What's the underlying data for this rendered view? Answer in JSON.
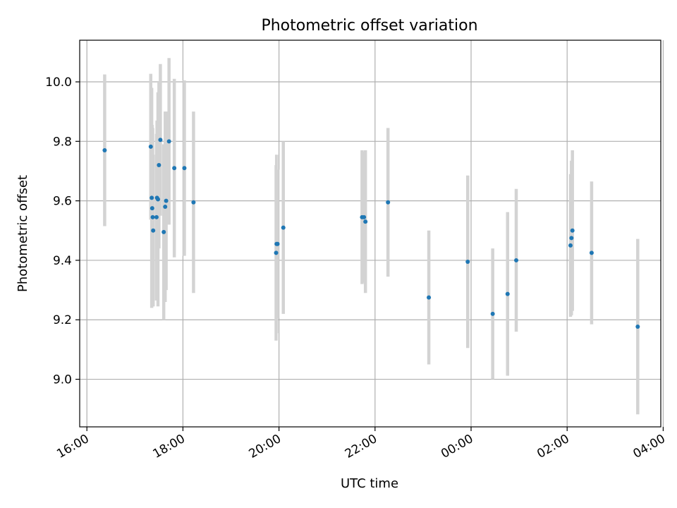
{
  "chart_data": {
    "type": "scatter",
    "title": "Photometric offset variation",
    "xlabel": "UTC time",
    "ylabel": "Photometric offset",
    "x_unit": "hours since 16:00 UTC",
    "xlim": [
      -0.15,
      11.95
    ],
    "ylim": [
      8.84,
      10.14
    ],
    "x_ticks": [
      {
        "value": 0,
        "label": "16:00"
      },
      {
        "value": 2,
        "label": "18:00"
      },
      {
        "value": 4,
        "label": "20:00"
      },
      {
        "value": 6,
        "label": "22:00"
      },
      {
        "value": 8,
        "label": "00:00"
      },
      {
        "value": 10,
        "label": "02:00"
      },
      {
        "value": 12,
        "label": "04:00"
      }
    ],
    "y_ticks": [
      {
        "value": 9.0,
        "label": "9.0"
      },
      {
        "value": 9.2,
        "label": "9.2"
      },
      {
        "value": 9.4,
        "label": "9.4"
      },
      {
        "value": 9.6,
        "label": "9.6"
      },
      {
        "value": 9.8,
        "label": "9.8"
      },
      {
        "value": 10.0,
        "label": "10.0"
      }
    ],
    "grid": true,
    "marker_color": "#1f77b4",
    "errorbar_color": "#d3d3d3",
    "points": [
      {
        "x": 0.37,
        "y": 9.77,
        "err": 0.255
      },
      {
        "x": 1.33,
        "y": 9.782,
        "err": 0.245
      },
      {
        "x": 1.35,
        "y": 9.61,
        "err": 0.37
      },
      {
        "x": 1.36,
        "y": 9.575,
        "err": 0.28
      },
      {
        "x": 1.37,
        "y": 9.545,
        "err": 0.3
      },
      {
        "x": 1.38,
        "y": 9.5,
        "err": 0.255
      },
      {
        "x": 1.45,
        "y": 9.545,
        "err": 0.28
      },
      {
        "x": 1.46,
        "y": 9.61,
        "err": 0.26
      },
      {
        "x": 1.48,
        "y": 9.605,
        "err": 0.36
      },
      {
        "x": 1.5,
        "y": 9.72,
        "err": 0.28
      },
      {
        "x": 1.53,
        "y": 9.805,
        "err": 0.255
      },
      {
        "x": 1.6,
        "y": 9.495,
        "err": 0.295
      },
      {
        "x": 1.63,
        "y": 9.58,
        "err": 0.32
      },
      {
        "x": 1.65,
        "y": 9.6,
        "err": 0.3
      },
      {
        "x": 1.71,
        "y": 9.8,
        "err": 0.28
      },
      {
        "x": 1.82,
        "y": 9.71,
        "err": 0.3
      },
      {
        "x": 2.03,
        "y": 9.71,
        "err": 0.295
      },
      {
        "x": 2.22,
        "y": 9.595,
        "err": 0.305
      },
      {
        "x": 3.94,
        "y": 9.425,
        "err": 0.295
      },
      {
        "x": 3.95,
        "y": 9.455,
        "err": 0.3
      },
      {
        "x": 3.97,
        "y": 9.455,
        "err": 0.25
      },
      {
        "x": 4.09,
        "y": 9.51,
        "err": 0.29
      },
      {
        "x": 5.73,
        "y": 9.545,
        "err": 0.225
      },
      {
        "x": 5.77,
        "y": 9.545,
        "err": 0.22
      },
      {
        "x": 5.8,
        "y": 9.53,
        "err": 0.24
      },
      {
        "x": 6.27,
        "y": 9.595,
        "err": 0.25
      },
      {
        "x": 7.12,
        "y": 9.275,
        "err": 0.225
      },
      {
        "x": 7.93,
        "y": 9.395,
        "err": 0.29
      },
      {
        "x": 8.45,
        "y": 9.22,
        "err": 0.22
      },
      {
        "x": 8.76,
        "y": 9.287,
        "err": 0.275
      },
      {
        "x": 8.94,
        "y": 9.4,
        "err": 0.24
      },
      {
        "x": 10.07,
        "y": 9.45,
        "err": 0.24
      },
      {
        "x": 10.09,
        "y": 9.475,
        "err": 0.26
      },
      {
        "x": 10.11,
        "y": 9.5,
        "err": 0.27
      },
      {
        "x": 10.51,
        "y": 9.425,
        "err": 0.24
      },
      {
        "x": 11.47,
        "y": 9.177,
        "err": 0.295
      }
    ]
  }
}
